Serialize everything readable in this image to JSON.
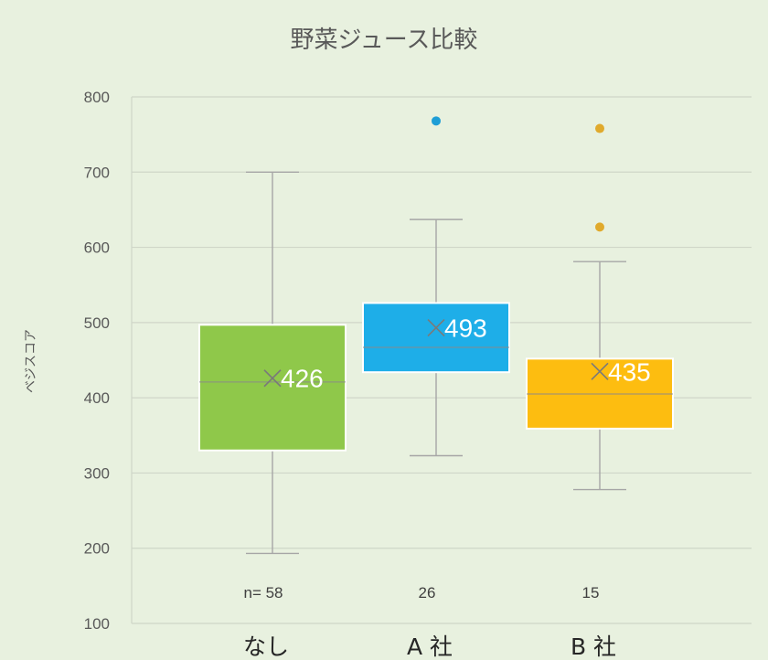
{
  "chart_data": {
    "type": "box",
    "title": "野菜ジュース比較",
    "ylabel": "ベジスコア",
    "xlabel": "",
    "ylim": [
      100,
      800
    ],
    "yticks": [
      100,
      200,
      300,
      400,
      500,
      600,
      700,
      800
    ],
    "grid": true,
    "legend": "none",
    "categories": [
      "なし",
      "A 社",
      "B 社"
    ],
    "count_labels": [
      "n= 58",
      "26",
      "15"
    ],
    "series": [
      {
        "category": "なし",
        "min": 193,
        "q1": 330,
        "median": 421,
        "q3": 497,
        "max": 700,
        "mean": 426,
        "mean_label": "426",
        "outliers": [],
        "color": "#8fc84a",
        "outlier_color": "#8fc84a"
      },
      {
        "category": "A 社",
        "min": 323,
        "q1": 434,
        "median": 467,
        "q3": 526,
        "max": 637,
        "mean": 493,
        "mean_label": "493",
        "outliers": [
          768
        ],
        "color": "#1eaee8",
        "outlier_color": "#1e9ed6"
      },
      {
        "category": "B 社",
        "min": 278,
        "q1": 359,
        "median": 405,
        "q3": 452,
        "max": 581,
        "mean": 435,
        "mean_label": "435",
        "outliers": [
          627,
          758
        ],
        "color": "#fdbd10",
        "outlier_color": "#e0aa2c"
      }
    ]
  }
}
